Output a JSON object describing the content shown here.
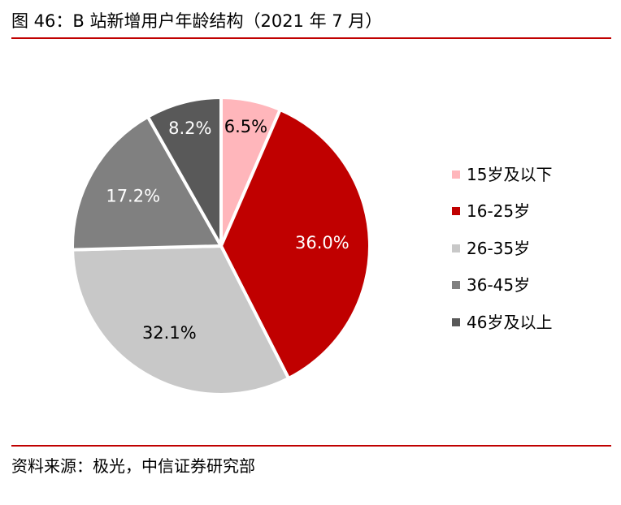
{
  "title": "图 46：B 站新增用户年龄结构（2021 年 7 月）",
  "source": "资料来源：极光，中信证券研究部",
  "chart_data": {
    "type": "pie",
    "title": "图 46：B 站新增用户年龄结构（2021 年 7 月）",
    "start_angle": "12 o'clock, clockwise",
    "legend_position": "right",
    "slices": [
      {
        "name": "15岁及以下",
        "value": 6.5,
        "label": "6.5%",
        "color": "#ffb6bb",
        "label_color": "#000000"
      },
      {
        "name": "16-25岁",
        "value": 36.0,
        "label": "36.0%",
        "color": "#c00000",
        "label_color": "#ffffff"
      },
      {
        "name": "26-35岁",
        "value": 32.1,
        "label": "32.1%",
        "color": "#c8c8c8",
        "label_color": "#000000"
      },
      {
        "name": "36-45岁",
        "value": 17.2,
        "label": "17.2%",
        "color": "#808080",
        "label_color": "#ffffff"
      },
      {
        "name": "46岁及以上",
        "value": 8.2,
        "label": "8.2%",
        "color": "#595959",
        "label_color": "#ffffff"
      }
    ]
  }
}
